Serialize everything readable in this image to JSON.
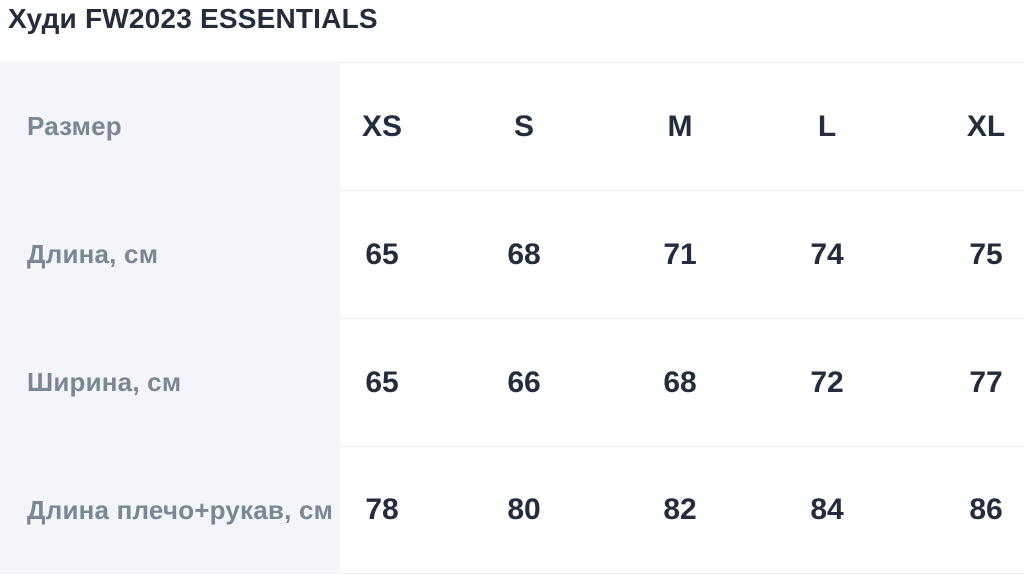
{
  "page_title": "Худи FW2023 ESSENTIALS",
  "size_table": {
    "corner_header": "Размер",
    "columns": [
      "XS",
      "S",
      "M",
      "L",
      "XL"
    ],
    "rows": [
      {
        "label": "Длина, см",
        "values": [
          "65",
          "68",
          "71",
          "74",
          "75"
        ]
      },
      {
        "label": "Ширина, см",
        "values": [
          "65",
          "66",
          "68",
          "72",
          "77"
        ]
      },
      {
        "label": "Длина плечо+рукав, см",
        "values": [
          "78",
          "80",
          "82",
          "84",
          "86"
        ]
      }
    ]
  },
  "colors": {
    "title_text": "#232d3e",
    "value_text": "#232d3e",
    "label_text": "#7b8794",
    "label_panel_bg": "#f3f5f8",
    "divider": "#ebedf0",
    "background": "#ffffff"
  }
}
